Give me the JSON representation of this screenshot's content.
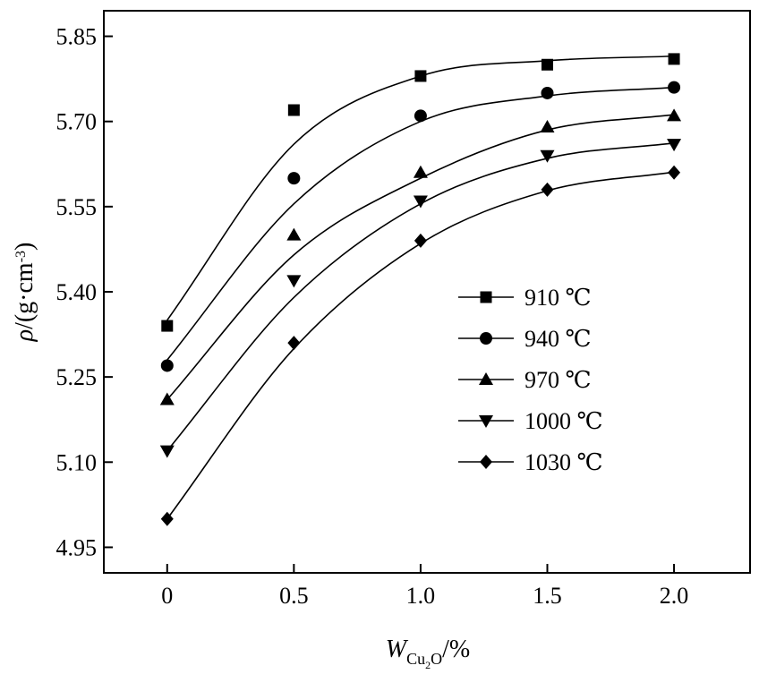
{
  "chart_data": {
    "type": "scatter",
    "title": "",
    "xlabel": {
      "main": "W",
      "sub_main": "Cu",
      "sub_sub": "2",
      "sub_tail": "O",
      "unit": "/%"
    },
    "ylabel": {
      "symbol": "ρ",
      "unit": "/(g·cm",
      "sup": "-3",
      "close": ")"
    },
    "xlim": [
      -0.25,
      2.3
    ],
    "ylim": [
      4.905,
      5.895
    ],
    "xticks": [
      0,
      0.5,
      1.0,
      1.5,
      2.0
    ],
    "xtick_labels": [
      "0",
      "0.5",
      "1.0",
      "1.5",
      "2.0"
    ],
    "yticks": [
      4.95,
      5.1,
      5.25,
      5.4,
      5.55,
      5.7,
      5.85
    ],
    "ytick_labels": [
      "4.95",
      "5.10",
      "5.25",
      "5.40",
      "5.55",
      "5.70",
      "5.85"
    ],
    "grid": false,
    "legend_position": "center-right",
    "series": [
      {
        "name": "910 ℃",
        "marker": "square",
        "x": [
          0,
          0.5,
          1.0,
          1.5,
          2.0
        ],
        "y": [
          5.34,
          5.72,
          5.78,
          5.8,
          5.81
        ],
        "fit": [
          5.35,
          5.66,
          5.78,
          5.807,
          5.815
        ]
      },
      {
        "name": "940 ℃",
        "marker": "circle",
        "x": [
          0,
          0.5,
          1.0,
          1.5,
          2.0
        ],
        "y": [
          5.27,
          5.6,
          5.71,
          5.75,
          5.76
        ],
        "fit": [
          5.28,
          5.555,
          5.7,
          5.745,
          5.76
        ]
      },
      {
        "name": "970 ℃",
        "marker": "triangle-up",
        "x": [
          0,
          0.5,
          1.0,
          1.5,
          2.0
        ],
        "y": [
          5.21,
          5.5,
          5.61,
          5.69,
          5.71
        ],
        "fit": [
          5.21,
          5.465,
          5.6,
          5.685,
          5.712
        ]
      },
      {
        "name": "1000 ℃",
        "marker": "triangle-down",
        "x": [
          0,
          0.5,
          1.0,
          1.5,
          2.0
        ],
        "y": [
          5.12,
          5.42,
          5.56,
          5.64,
          5.66
        ],
        "fit": [
          5.12,
          5.39,
          5.555,
          5.635,
          5.662
        ]
      },
      {
        "name": "1030 ℃",
        "marker": "diamond",
        "x": [
          0,
          0.5,
          1.0,
          1.5,
          2.0
        ],
        "y": [
          5.0,
          5.31,
          5.49,
          5.58,
          5.61
        ],
        "fit": [
          5.0,
          5.3,
          5.485,
          5.578,
          5.611
        ]
      }
    ]
  }
}
